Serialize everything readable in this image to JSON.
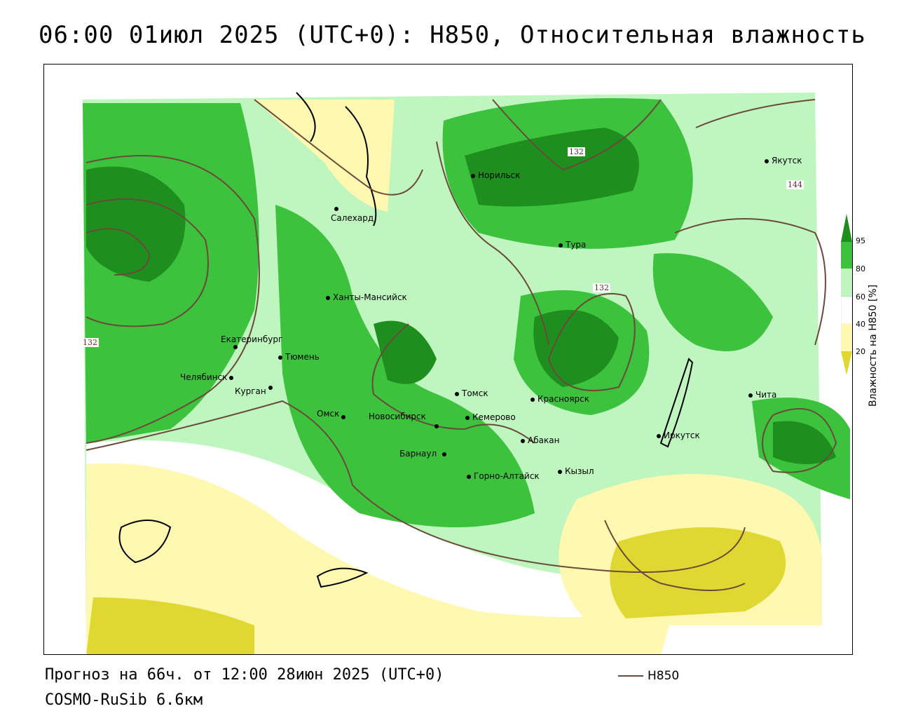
{
  "header": {
    "title": "06:00 01июл 2025 (UTC+0): H850, Относительная влажность"
  },
  "footer": {
    "forecast": "Прогноз на 66ч. от 12:00 28июн 2025 (UTC+0)",
    "model": "COSMO-RuSib 6.6км",
    "contour_legend": "H850"
  },
  "colorbar": {
    "title": "Влажность на H850 [%]",
    "ticks": [
      "95",
      "80",
      "60",
      "40",
      "20"
    ],
    "colors": [
      "#1e8f1e",
      "#3cc23c",
      "#bff5bf",
      "#ffffff",
      "#fff8b0",
      "#e0d832"
    ]
  },
  "cities": [
    {
      "name": "Норильск"
    },
    {
      "name": "Якутск"
    },
    {
      "name": "Салехард"
    },
    {
      "name": "Тура"
    },
    {
      "name": "Ханты-Мансийск"
    },
    {
      "name": "Екатеринбург"
    },
    {
      "name": "Тюмень"
    },
    {
      "name": "Челябинск"
    },
    {
      "name": "Курган"
    },
    {
      "name": "Томск"
    },
    {
      "name": "Красноярск"
    },
    {
      "name": "Чита"
    },
    {
      "name": "Омск"
    },
    {
      "name": "Новосибирск"
    },
    {
      "name": "Кемерово"
    },
    {
      "name": "Абакан"
    },
    {
      "name": "Иркутск"
    },
    {
      "name": "Барнаул"
    },
    {
      "name": "Кызыл"
    },
    {
      "name": "Горно-Алтайск"
    }
  ],
  "contour_labels": [
    "132",
    "132",
    "144",
    "132"
  ],
  "colors": {
    "contour": "#6b4a3a",
    "dark_green": "#1e8f1e",
    "green": "#3cc23c",
    "light_green": "#bff5bf",
    "light_yellow": "#fff8b0",
    "yellow": "#e0d832"
  }
}
